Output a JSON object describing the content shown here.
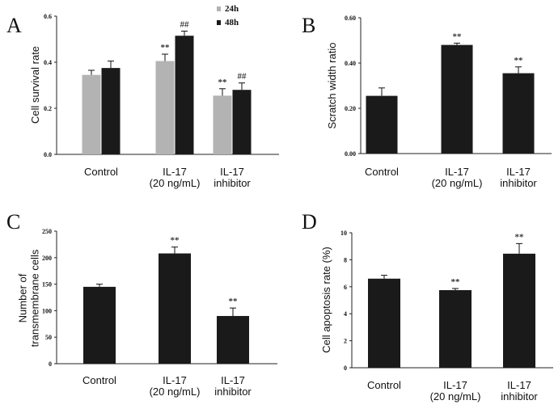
{
  "chart_data": [
    {
      "panel": "A",
      "type": "bar",
      "ylabel": "Cell survival rate",
      "ylim": [
        0,
        0.6
      ],
      "yticks": [
        "0.0",
        "0.2",
        "0.4",
        "0.6"
      ],
      "categories": [
        "Control",
        "IL-17\n(20 ng/mL)",
        "IL-17\ninhibitor"
      ],
      "series": [
        {
          "name": "24h",
          "color": "#b3b3b3",
          "values": [
            0.345,
            0.405,
            0.255
          ],
          "errors": [
            0.02,
            0.03,
            0.03
          ],
          "sig": [
            "",
            "**",
            "**"
          ]
        },
        {
          "name": "48h",
          "color": "#1a1a1a",
          "values": [
            0.375,
            0.515,
            0.28
          ],
          "errors": [
            0.03,
            0.02,
            0.03
          ],
          "sig": [
            "",
            "##",
            "##"
          ]
        }
      ],
      "legend": [
        "24h",
        "48h"
      ]
    },
    {
      "panel": "B",
      "type": "bar",
      "ylabel": "Scratch width ratio",
      "ylim": [
        0,
        0.6
      ],
      "yticks": [
        "0.00",
        "0.20",
        "0.40",
        "0.60"
      ],
      "categories": [
        "Control",
        "IL-17\n(20 ng/mL)",
        "IL-17\ninhibitor"
      ],
      "series": [
        {
          "name": "",
          "color": "#1a1a1a",
          "values": [
            0.255,
            0.48,
            0.355
          ],
          "errors": [
            0.035,
            0.008,
            0.028
          ],
          "sig": [
            "",
            "**",
            "**"
          ]
        }
      ]
    },
    {
      "panel": "C",
      "type": "bar",
      "ylabel": "Number of\ntransmembrane cells",
      "ylim": [
        0,
        250
      ],
      "yticks": [
        "0",
        "50",
        "100",
        "150",
        "200",
        "250"
      ],
      "categories": [
        "Control",
        "IL-17\n(20 ng/mL)",
        "IL-17\ninhibitor"
      ],
      "series": [
        {
          "name": "",
          "color": "#1a1a1a",
          "values": [
            145,
            208,
            90
          ],
          "errors": [
            5,
            12,
            15
          ],
          "sig": [
            "",
            "**",
            "**"
          ]
        }
      ]
    },
    {
      "panel": "D",
      "type": "bar",
      "ylabel": "Cell apoptosis rate (%)",
      "ylim": [
        0,
        10
      ],
      "yticks": [
        "0",
        "2",
        "4",
        "6",
        "8",
        "10"
      ],
      "categories": [
        "Control",
        "IL-17\n(20 ng/mL)",
        "IL-17\ninhibitor"
      ],
      "series": [
        {
          "name": "",
          "color": "#1a1a1a",
          "values": [
            6.6,
            5.75,
            8.45
          ],
          "errors": [
            0.25,
            0.12,
            0.75
          ],
          "sig": [
            "",
            "**",
            "**"
          ]
        }
      ]
    }
  ]
}
